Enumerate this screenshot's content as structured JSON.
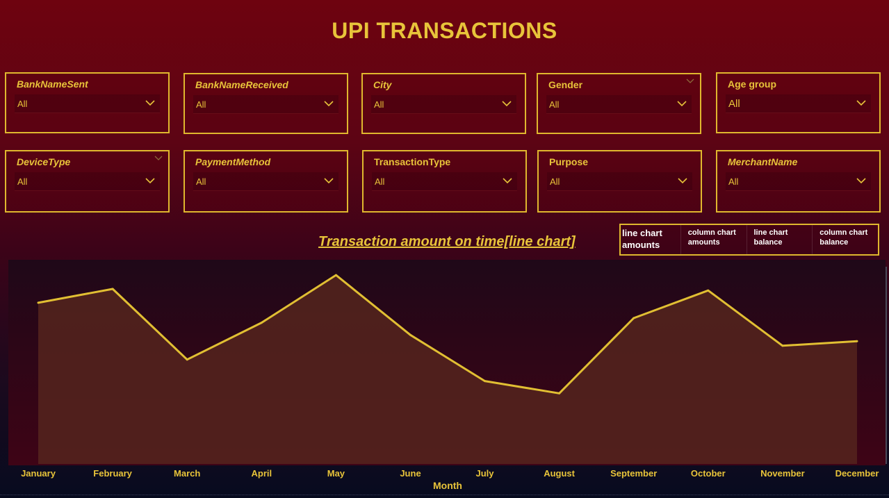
{
  "title": "UPI TRANSACTIONS",
  "slicers_row1": [
    {
      "label": "BankNameSent",
      "value": "All"
    },
    {
      "label": "BankNameReceived",
      "value": "All"
    },
    {
      "label": "City",
      "value": "All"
    },
    {
      "label": "Gender",
      "value": "All"
    },
    {
      "label": "Age group",
      "value": "All"
    }
  ],
  "slicers_row2": [
    {
      "label": "DeviceType",
      "value": "All"
    },
    {
      "label": "PaymentMethod",
      "value": "All"
    },
    {
      "label": "TransactionType",
      "value": "All"
    },
    {
      "label": "Purpose",
      "value": "All"
    },
    {
      "label": "MerchantName",
      "value": "All"
    }
  ],
  "chart_toggle": [
    {
      "label": "line chart amounts",
      "active": true
    },
    {
      "label": "column chart amounts",
      "active": false
    },
    {
      "label": "line chart balance",
      "active": false
    },
    {
      "label": "column chart balance",
      "active": false
    }
  ],
  "colors": {
    "accent": "#e8c43a",
    "line": "#e1bf33",
    "area": "#55241d"
  },
  "chart_data": {
    "type": "area",
    "title": "Transaction amount on time[line chart]",
    "xlabel": "Month",
    "ylabel": "",
    "categories": [
      "January",
      "February",
      "March",
      "April",
      "May",
      "June",
      "July",
      "August",
      "September",
      "October",
      "November",
      "December"
    ],
    "values": [
      72,
      81,
      35,
      59,
      90,
      51,
      21,
      13,
      62,
      80,
      44,
      47
    ],
    "ylim": [
      -33,
      100
    ],
    "grid": false
  }
}
